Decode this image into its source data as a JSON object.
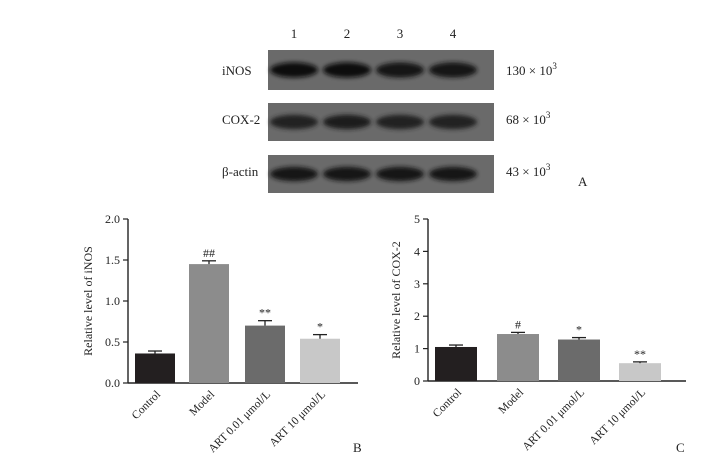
{
  "panel_a": {
    "lane_numbers": [
      "1",
      "2",
      "3",
      "4"
    ],
    "bands": [
      {
        "name": "iNOS",
        "size": "130 × 10",
        "exp": "3",
        "intensity": [
          0.95,
          0.98,
          0.92,
          0.88
        ]
      },
      {
        "name": "COX-2",
        "size": "68 × 10",
        "exp": "3",
        "intensity": [
          0.55,
          0.65,
          0.55,
          0.6
        ]
      },
      {
        "name": "β-actin",
        "size": "43 × 10",
        "exp": "3",
        "intensity": [
          0.9,
          0.9,
          0.9,
          0.9
        ]
      }
    ],
    "panel_label": "A"
  },
  "chart_data": [
    {
      "type": "bar",
      "panel_label": "B",
      "ylabel": "Relative level of iNOS",
      "ylim": [
        0,
        2.0
      ],
      "yticks": [
        "0.0",
        "0.5",
        "1.0",
        "1.5",
        "2.0"
      ],
      "ytick_values": [
        0,
        0.5,
        1.0,
        1.5,
        2.0
      ],
      "categories": [
        "Control",
        "Model",
        "ART 0.01 μmol/L",
        "ART 10 μmol/L"
      ],
      "values": [
        0.36,
        1.45,
        0.7,
        0.54
      ],
      "errors": [
        0.03,
        0.04,
        0.06,
        0.05
      ],
      "annotations": [
        "",
        "##",
        "**",
        "*"
      ],
      "colors": [
        "#231f20",
        "#8c8c8c",
        "#6b6b6b",
        "#c8c8c8"
      ]
    },
    {
      "type": "bar",
      "panel_label": "C",
      "ylabel": "Relative level of COX-2",
      "ylim": [
        0,
        5
      ],
      "yticks": [
        "0",
        "1",
        "2",
        "3",
        "4",
        "5"
      ],
      "ytick_values": [
        0,
        1,
        2,
        3,
        4,
        5
      ],
      "categories": [
        "Control",
        "Model",
        "ART 0.01 μmol/L",
        "ART 10 μmol/L"
      ],
      "values": [
        1.05,
        1.45,
        1.28,
        0.55
      ],
      "errors": [
        0.06,
        0.05,
        0.06,
        0.04
      ],
      "annotations": [
        "",
        "#",
        "*",
        "**"
      ],
      "colors": [
        "#231f20",
        "#8c8c8c",
        "#6b6b6b",
        "#c8c8c8"
      ]
    }
  ]
}
